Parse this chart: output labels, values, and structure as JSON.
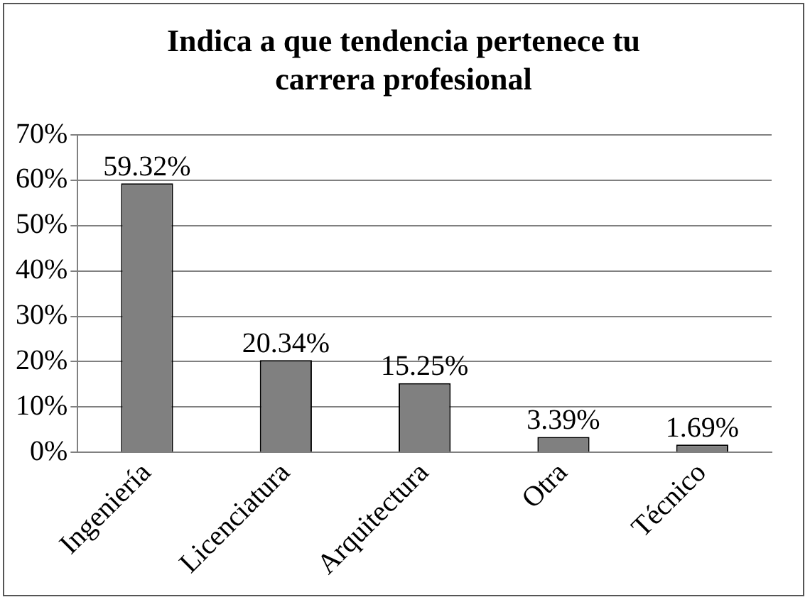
{
  "chart_data": {
    "type": "bar",
    "title": "Indica a que tendencia pertenece tu carrera profesional",
    "categories": [
      "Ingeniería",
      "Licenciatura",
      "Arquitectura",
      "Otra",
      "Técnico"
    ],
    "values": [
      59.32,
      20.34,
      15.25,
      3.39,
      1.69
    ],
    "value_labels": [
      "59.32%",
      "20.34%",
      "15.25%",
      "3.39%",
      "1.69%"
    ],
    "color": "#808080",
    "ylim": [
      0,
      70
    ],
    "yticks": [
      {
        "value": 0,
        "label": "0%"
      },
      {
        "value": 10,
        "label": "10%"
      },
      {
        "value": 20,
        "label": "20%"
      },
      {
        "value": 30,
        "label": "30%"
      },
      {
        "value": 40,
        "label": "40%"
      },
      {
        "value": 50,
        "label": "50%"
      },
      {
        "value": 60,
        "label": "60%"
      },
      {
        "value": 70,
        "label": "70%"
      }
    ],
    "grid": "y",
    "legend": false
  }
}
